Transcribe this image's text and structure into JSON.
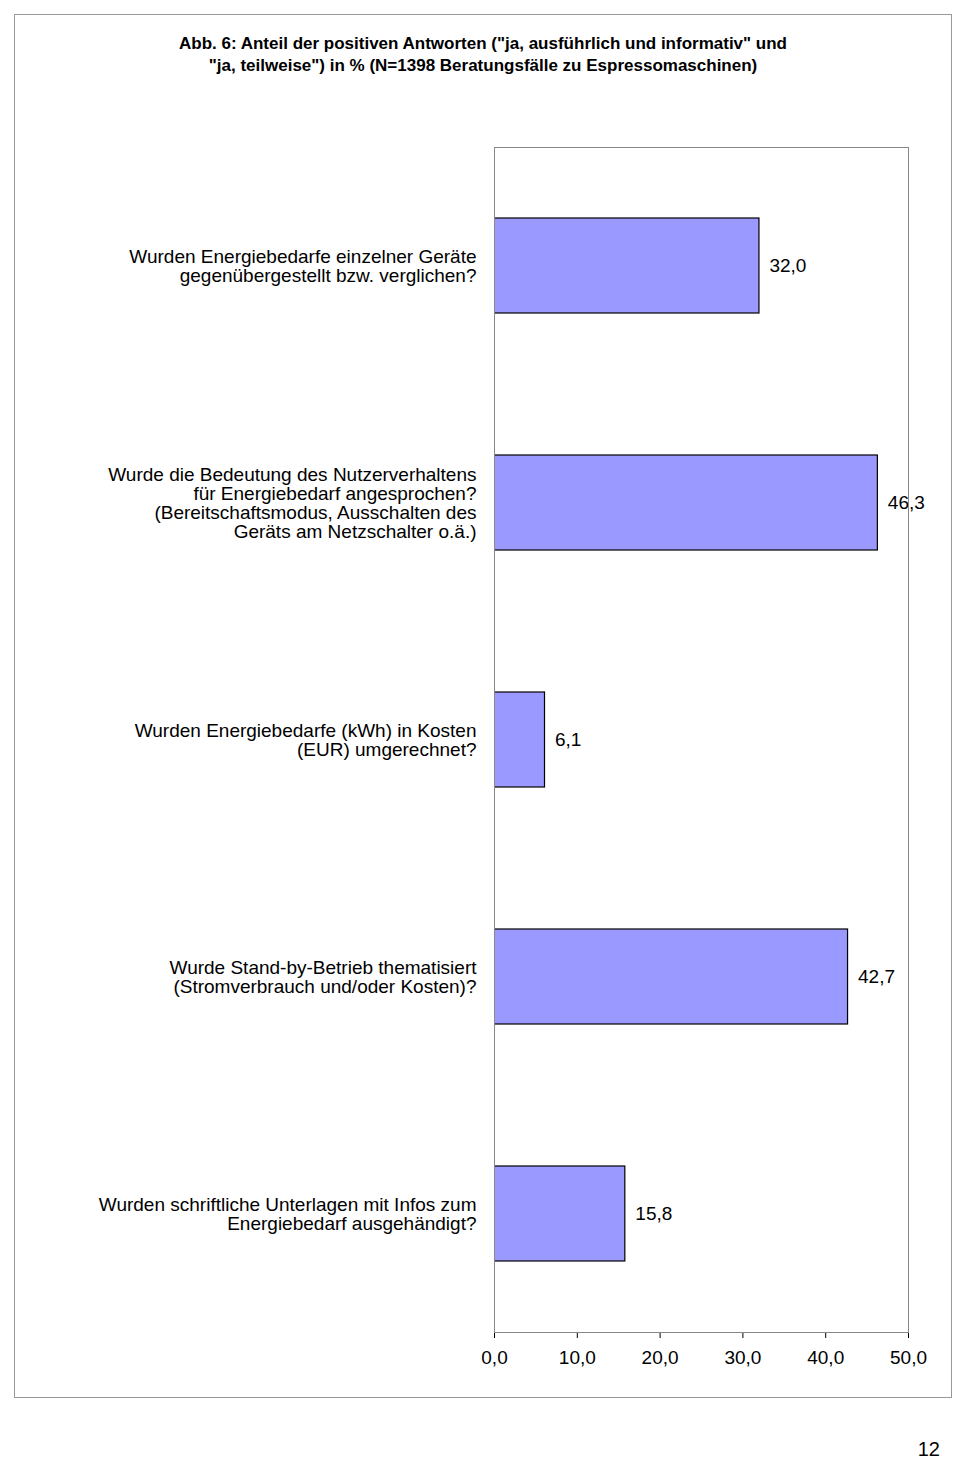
{
  "chart_data": {
    "type": "bar",
    "orientation": "horizontal",
    "title": "Abb. 6: Anteil der positiven Antworten (\"ja, ausführlich und informativ\" und\n\"ja, teilweise\") in % (N=1398 Beratungsfälle zu Espressomaschinen)",
    "categories": [
      "Wurden Energiebedarfe einzelner Geräte\ngegenübergestellt bzw. verglichen?",
      "Wurde die Bedeutung des Nutzerverhaltens\nfür Energiebedarf angesprochen?\n(Bereitschaftsmodus, Ausschalten des\nGeräts am Netzschalter o.ä.)",
      "Wurden Energiebedarfe (kWh) in Kosten\n(EUR) umgerechnet?",
      "Wurde Stand-by-Betrieb thematisiert\n(Stromverbrauch und/oder Kosten)?",
      "Wurden schriftliche Unterlagen mit Infos zum\nEnergiebedarf ausgehändigt?"
    ],
    "values": [
      32.0,
      46.3,
      6.1,
      42.7,
      15.8
    ],
    "value_labels": [
      "32,0",
      "46,3",
      "6,1",
      "42,7",
      "15,8"
    ],
    "data_labels": true,
    "color": "#9999ff",
    "xlim": [
      0,
      50
    ],
    "xticks": [
      {
        "value": 0,
        "label": "0,0"
      },
      {
        "value": 10,
        "label": "10,0"
      },
      {
        "value": 20,
        "label": "20,0"
      },
      {
        "value": 30,
        "label": "30,0"
      },
      {
        "value": 40,
        "label": "40,0"
      },
      {
        "value": 50,
        "label": "50,0"
      }
    ],
    "grid": false,
    "annotations": [
      "12"
    ]
  }
}
